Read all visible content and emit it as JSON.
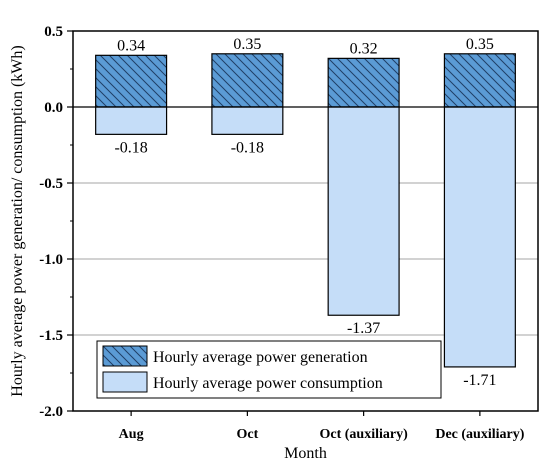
{
  "chart_data": {
    "type": "bar",
    "stacked": true,
    "categories": [
      "Aug",
      "Oct",
      "Oct (auxiliary)",
      "Dec (auxiliary)"
    ],
    "series": [
      {
        "name": "Hourly average power generation",
        "values": [
          0.34,
          0.35,
          0.32,
          0.35
        ],
        "labels": [
          "0.34",
          "0.35",
          "0.32",
          "0.35"
        ],
        "color": "#5b9bd5",
        "pattern": "diagonal-hatch"
      },
      {
        "name": "Hourly average power consumption",
        "values": [
          -0.18,
          -0.18,
          -1.37,
          -1.71
        ],
        "labels": [
          "-0.18",
          "-0.18",
          "-1.37",
          "-1.71"
        ],
        "color": "#c5ddf8",
        "pattern": "solid"
      }
    ],
    "xlabel": "Month",
    "ylabel": "Hourly average power generation/ consumption (kWh)",
    "ylim": [
      -2.0,
      0.5
    ],
    "yticks": [
      0.5,
      0.0,
      -0.5,
      -1.0,
      -1.5,
      -2.0
    ],
    "ytick_labels": [
      "0.5",
      "0.0",
      "-0.5",
      "-1.0",
      "-1.5",
      "-2.0"
    ],
    "grid": "horizontal",
    "legend_position": "bottom-left"
  }
}
